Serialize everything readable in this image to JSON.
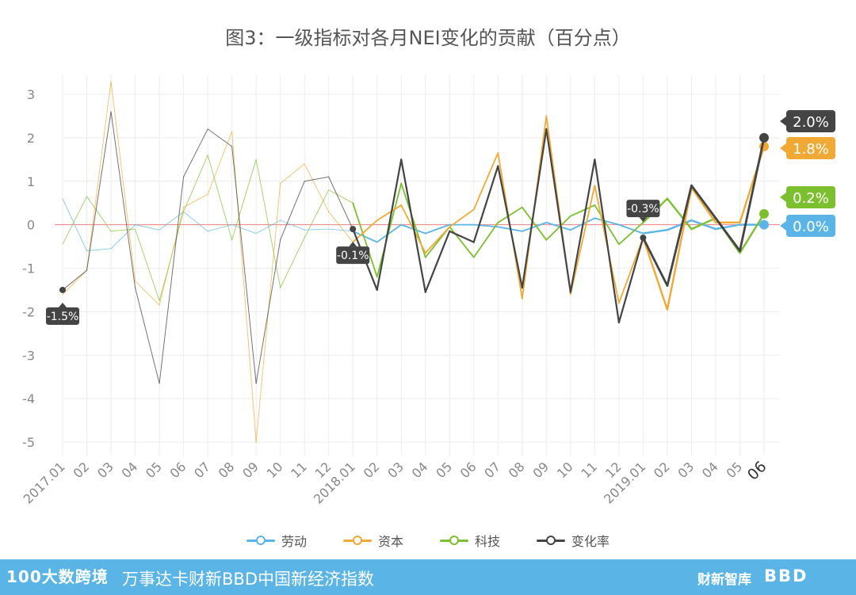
{
  "title": "图3：一级指标对各月NEI变化的贡献（百分点）",
  "chart_data": {
    "type": "line",
    "categories": [
      "2017.01",
      "02",
      "03",
      "04",
      "05",
      "06",
      "07",
      "08",
      "09",
      "10",
      "11",
      "12",
      "2018.01",
      "02",
      "03",
      "04",
      "05",
      "06",
      "07",
      "08",
      "09",
      "10",
      "11",
      "12",
      "2019.01",
      "02",
      "03",
      "04",
      "05",
      "06"
    ],
    "ylim": [
      -5,
      3
    ],
    "yticks": [
      "3",
      "2",
      "1",
      "0",
      "-1",
      "-2",
      "-3",
      "-4",
      "-5"
    ],
    "grid": true,
    "legend_position": "bottom",
    "series": [
      {
        "name": "劳动",
        "color": "#5ab5e6",
        "values": [
          0.6,
          -0.6,
          -0.55,
          0.0,
          -0.12,
          0.3,
          -0.15,
          0.0,
          -0.2,
          0.1,
          -0.12,
          -0.1,
          -0.15,
          -0.4,
          0.0,
          -0.2,
          0.0,
          0.0,
          -0.05,
          -0.15,
          0.05,
          -0.12,
          0.15,
          0.0,
          -0.2,
          -0.12,
          0.1,
          -0.1,
          0.0,
          0.0
        ]
      },
      {
        "name": "资本",
        "color": "#f0a935",
        "values": [
          -1.6,
          -1.05,
          3.3,
          -1.3,
          -1.85,
          0.4,
          0.7,
          2.15,
          -5.0,
          0.95,
          1.4,
          0.3,
          -0.4,
          0.1,
          0.45,
          -0.65,
          -0.05,
          0.35,
          1.65,
          -1.7,
          2.5,
          -1.6,
          0.9,
          -1.8,
          -0.3,
          -1.95,
          0.85,
          0.05,
          0.05,
          1.8
        ]
      },
      {
        "name": "科技",
        "color": "#7cbf2f",
        "values": [
          -0.45,
          0.65,
          -0.15,
          -0.1,
          -1.75,
          0.3,
          1.6,
          -0.35,
          1.5,
          -1.45,
          -0.3,
          0.8,
          0.5,
          -1.2,
          0.95,
          -0.75,
          -0.05,
          -0.75,
          0.05,
          0.4,
          -0.35,
          0.2,
          0.45,
          -0.45,
          0.05,
          0.6,
          -0.1,
          0.15,
          -0.65,
          0.25
        ]
      },
      {
        "name": "变化率",
        "color": "#444444",
        "values": [
          -1.5,
          -1.05,
          2.6,
          -1.45,
          -3.65,
          1.1,
          2.2,
          1.8,
          -3.65,
          -0.35,
          1.0,
          1.1,
          -0.1,
          -1.5,
          1.5,
          -1.55,
          -0.15,
          -0.4,
          1.35,
          -1.45,
          2.2,
          -1.55,
          1.5,
          -2.25,
          -0.3,
          -1.4,
          0.9,
          0.15,
          -0.6,
          2.0
        ]
      }
    ],
    "callouts": [
      {
        "label": "-1.5%",
        "series": "变化率",
        "index": 0
      },
      {
        "label": "-0.1%",
        "series": "变化率",
        "index": 12
      },
      {
        "label": "-0.3%",
        "series": "变化率",
        "index": 24
      }
    ],
    "end_labels": [
      {
        "label": "2.0%",
        "series": "变化率"
      },
      {
        "label": "1.8%",
        "series": "资本"
      },
      {
        "label": "0.2%",
        "series": "科技"
      },
      {
        "label": "0.0%",
        "series": "劳动"
      }
    ]
  },
  "footer": {
    "logo": "100大数跨境",
    "tagline": "万事达卡财新BBD中国新经济指数",
    "right_brand": "财新智库",
    "right_logo": "BBD"
  }
}
